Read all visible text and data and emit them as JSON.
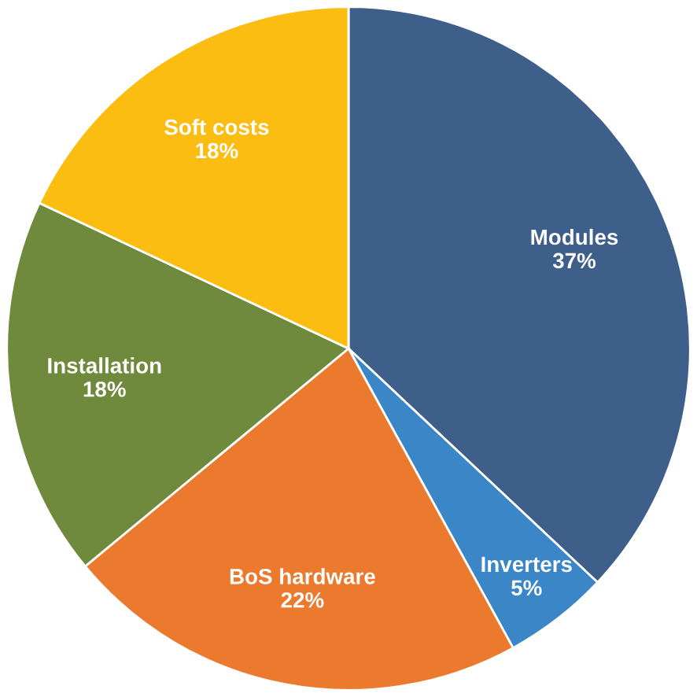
{
  "chart_data": {
    "type": "pie",
    "categories": [
      "Modules",
      "Inverters",
      "BoS hardware",
      "Installation",
      "Soft costs"
    ],
    "values": [
      37,
      5,
      22,
      18,
      18
    ],
    "colors": [
      "#3e5f8a",
      "#3b86c6",
      "#ec7a2e",
      "#6f8a3c",
      "#fbbd12"
    ],
    "value_labels": [
      "37%",
      "5%",
      "22%",
      "18%",
      "18%"
    ]
  }
}
